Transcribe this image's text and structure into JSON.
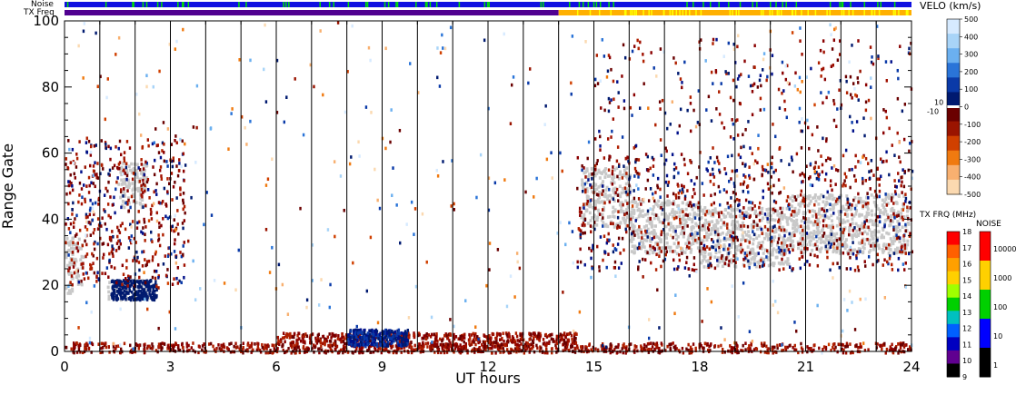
{
  "chart_data": {
    "type": "heatmap",
    "xlabel": "UT hours",
    "ylabel": "Range Gate",
    "xlim": [
      0,
      24
    ],
    "ylim": [
      0,
      100
    ],
    "x_ticks": [
      "0",
      "3",
      "6",
      "9",
      "12",
      "15",
      "18",
      "21",
      "24"
    ],
    "y_ticks": [
      "0",
      "20",
      "40",
      "60",
      "80",
      "100"
    ],
    "vertical_gridlines_hours": [
      1,
      2,
      3,
      4,
      5,
      6,
      7,
      8,
      9,
      10,
      11,
      12,
      13,
      14,
      15,
      16,
      17,
      18,
      19,
      20,
      21,
      22,
      23
    ],
    "top_strips": {
      "noise_label": "Noise",
      "txfreq_label": "TX Freq",
      "txfreq_change_hour": 14.0
    },
    "velocity_colorbar": {
      "title": "VELO (km/s)",
      "tick_labels": [
        "500",
        "400",
        "300",
        "200",
        "100",
        "0",
        "-100",
        "-200",
        "-300",
        "-400",
        "-500"
      ],
      "tick_values": [
        500,
        400,
        300,
        200,
        100,
        0,
        -100,
        -200,
        -300,
        -400,
        -500
      ],
      "near_zero_labels": [
        "10",
        "-10"
      ],
      "colors": [
        "#d6eaff",
        "#a8d4f8",
        "#6bb0f0",
        "#2a74d8",
        "#0a3aa8",
        "#001a70",
        "#6a0000",
        "#9a1400",
        "#d04000",
        "#f07a10",
        "#f8b070",
        "#fbd9b0"
      ]
    },
    "txfreq_colorbar": {
      "title": "TX FRQ (MHz)",
      "tick_labels": [
        "18",
        "17",
        "16",
        "15",
        "14",
        "13",
        "12",
        "11",
        "10",
        "9"
      ],
      "colors": [
        "#ff0000",
        "#ff6000",
        "#ffa000",
        "#ffd000",
        "#a0ff00",
        "#00d000",
        "#00c0c0",
        "#0060ff",
        "#0000c0",
        "#600090",
        "#000000"
      ]
    },
    "noise_colorbar": {
      "title": "NOISE",
      "tick_labels": [
        "10000",
        "1000",
        "100",
        "10",
        "1"
      ],
      "colors": [
        "#ff0000",
        "#ffd000",
        "#00d000",
        "#0000ff",
        "#000000"
      ]
    },
    "ground_scatter_regions": [
      {
        "x": [
          0.0,
          0.5
        ],
        "y": [
          18,
          35
        ]
      },
      {
        "x": [
          1.2,
          2.4
        ],
        "y": [
          16,
          22
        ]
      },
      {
        "x": [
          1.5,
          2.3
        ],
        "y": [
          44,
          58
        ]
      },
      {
        "x": [
          14.6,
          16.0
        ],
        "y": [
          38,
          56
        ]
      },
      {
        "x": [
          16.0,
          18.0
        ],
        "y": [
          30,
          46
        ]
      },
      {
        "x": [
          18.0,
          20.5
        ],
        "y": [
          26,
          44
        ]
      },
      {
        "x": [
          20.5,
          23.9
        ],
        "y": [
          30,
          48
        ]
      }
    ],
    "series": []
  }
}
